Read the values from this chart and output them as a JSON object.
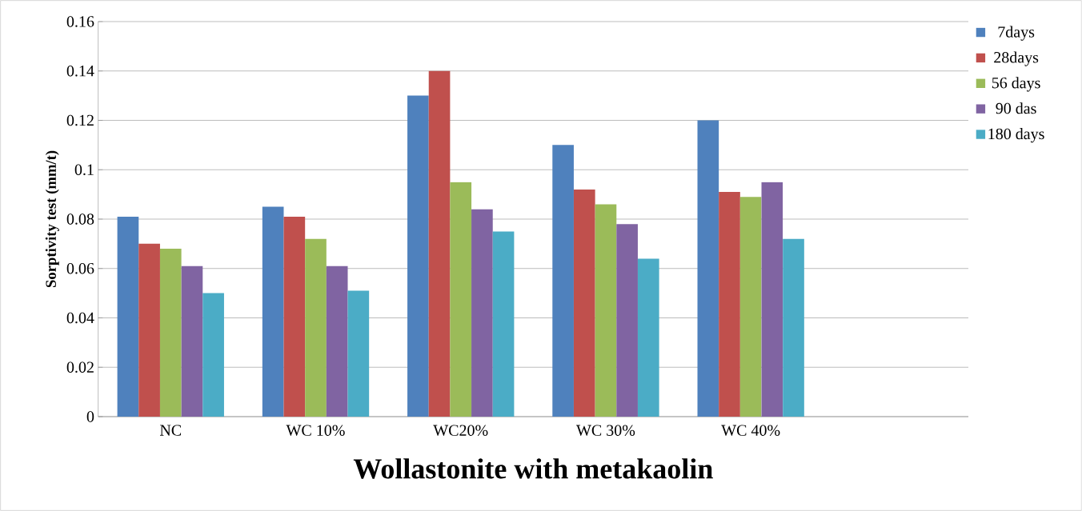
{
  "chart_data": {
    "type": "bar",
    "xlabel": "Wollastonite with metakaolin",
    "ylabel": "Sorptivity test (mm/t)",
    "categories": [
      "NC",
      "WC 10%",
      "WC20%",
      "WC 30%",
      "WC 40%",
      null
    ],
    "series": [
      {
        "name": "7days",
        "color": "#4f81bd",
        "values": [
          0.081,
          0.085,
          0.13,
          0.11,
          0.12,
          null
        ]
      },
      {
        "name": "28days",
        "color": "#c0504d",
        "values": [
          0.07,
          0.081,
          0.14,
          0.092,
          0.091,
          null
        ]
      },
      {
        "name": "56 days",
        "color": "#9bbb59",
        "values": [
          0.068,
          0.072,
          0.095,
          0.086,
          0.089,
          null
        ]
      },
      {
        "name": "90 das",
        "color": "#8064a2",
        "values": [
          0.061,
          0.061,
          0.084,
          0.078,
          0.095,
          null
        ]
      },
      {
        "name": "180 days",
        "color": "#4bacc6",
        "values": [
          0.05,
          0.051,
          0.075,
          0.064,
          0.072,
          null
        ]
      }
    ],
    "ylim": [
      0,
      0.16
    ],
    "yticks": [
      0,
      0.02,
      0.04,
      0.06,
      0.08,
      0.1,
      0.12,
      0.14,
      0.16
    ],
    "grid": "y",
    "legend": "right"
  }
}
